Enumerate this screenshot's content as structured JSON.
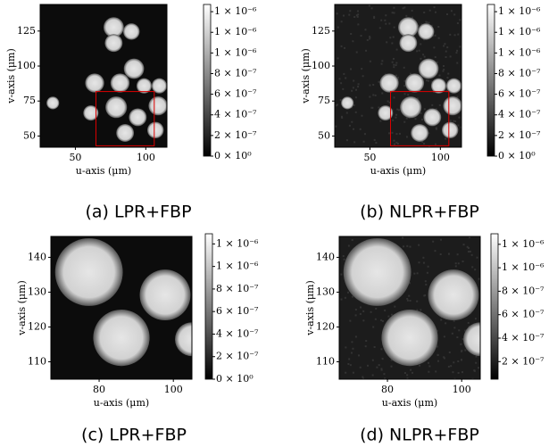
{
  "figure": {
    "panels": [
      {
        "caption": "(a) LPR+FBP",
        "xlabel": "u-axis (μm)",
        "ylabel": "v-axis (μm)",
        "xlim": [
          25,
          115
        ],
        "ylim": [
          144,
          42
        ],
        "xticks": [
          50,
          100
        ],
        "yticks": [
          50,
          75,
          100,
          125
        ],
        "clim": [
          0,
          1.47e-06
        ],
        "cticks": [
          {
            "value": 0,
            "label": "0 × 10⁰"
          },
          {
            "value": 2e-07,
            "label": "2 × 10⁻⁷"
          },
          {
            "value": 4e-07,
            "label": "4 × 10⁻⁷"
          },
          {
            "value": 6e-07,
            "label": "6 × 10⁻⁷"
          },
          {
            "value": 8e-07,
            "label": "8 × 10⁻⁷"
          },
          {
            "value": 1e-06,
            "label": "1 × 10⁻⁶"
          },
          {
            "value": 1.2e-06,
            "label": "1 × 10⁻⁶"
          },
          {
            "value": 1.4e-06,
            "label": "1 × 10⁻⁶"
          }
        ]
      },
      {
        "caption": "(b) NLPR+FBP",
        "xlabel": "u-axis (μm)",
        "ylabel": "v-axis (μm)",
        "xlim": [
          25,
          115
        ],
        "ylim": [
          144,
          42
        ],
        "xticks": [
          50,
          100
        ],
        "yticks": [
          50,
          75,
          100,
          125
        ],
        "clim": [
          0,
          1.47e-06
        ],
        "cticks": [
          {
            "value": 0,
            "label": "0 × 10⁰"
          },
          {
            "value": 2e-07,
            "label": "2 × 10⁻⁷"
          },
          {
            "value": 4e-07,
            "label": "4 × 10⁻⁷"
          },
          {
            "value": 6e-07,
            "label": "6 × 10⁻⁷"
          },
          {
            "value": 8e-07,
            "label": "8 × 10⁻⁷"
          },
          {
            "value": 1e-06,
            "label": "1 × 10⁻⁶"
          },
          {
            "value": 1.2e-06,
            "label": "1 × 10⁻⁶"
          },
          {
            "value": 1.4e-06,
            "label": "1 × 10⁻⁶"
          }
        ]
      },
      {
        "caption": "(c) LPR+FBP",
        "xlabel": "u-axis (μm)",
        "ylabel": "v-axis (μm)",
        "xlim": [
          67,
          105
        ],
        "ylim": [
          146,
          105
        ],
        "xticks": [
          80,
          100
        ],
        "yticks": [
          110,
          120,
          130,
          140
        ],
        "clim": [
          0,
          1.29e-06
        ],
        "cticks": [
          {
            "value": 0,
            "label": "0 × 10⁰"
          },
          {
            "value": 2e-07,
            "label": "2 × 10⁻⁷"
          },
          {
            "value": 4e-07,
            "label": "4 × 10⁻⁷"
          },
          {
            "value": 6e-07,
            "label": "6 × 10⁻⁷"
          },
          {
            "value": 8e-07,
            "label": "8 × 10⁻⁷"
          },
          {
            "value": 1e-06,
            "label": "1 × 10⁻⁶"
          },
          {
            "value": 1.2e-06,
            "label": "1 × 10⁻⁶"
          }
        ]
      },
      {
        "caption": "(d) NLPR+FBP",
        "xlabel": "u-axis (μm)",
        "ylabel": "v-axis (μm)",
        "xlim": [
          67,
          105
        ],
        "ylim": [
          146,
          105
        ],
        "xticks": [
          80,
          100
        ],
        "yticks": [
          110,
          120,
          130,
          140
        ],
        "clim": [
          5e-08,
          1.29e-06
        ],
        "cticks": [
          {
            "value": 2e-07,
            "label": "2 × 10⁻⁷"
          },
          {
            "value": 4e-07,
            "label": "4 × 10⁻⁷"
          },
          {
            "value": 6e-07,
            "label": "6 × 10⁻⁷"
          },
          {
            "value": 8e-07,
            "label": "8 × 10⁻⁷"
          },
          {
            "value": 1e-06,
            "label": "1 × 10⁻⁶"
          },
          {
            "value": 1.2e-06,
            "label": "1 × 10⁻⁶"
          }
        ]
      }
    ]
  }
}
